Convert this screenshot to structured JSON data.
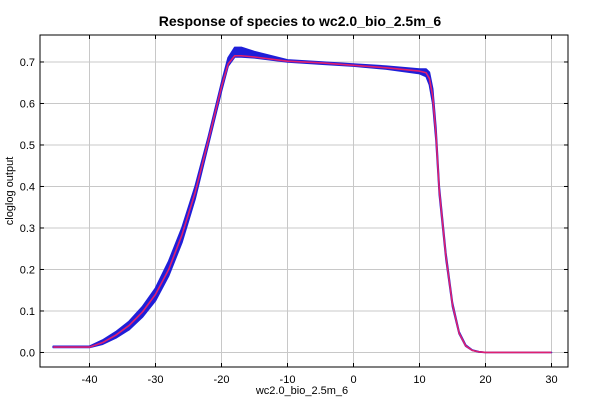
{
  "chart_data": {
    "type": "line",
    "title": "Response of species to wc2.0_bio_2.5m_6",
    "xlabel": "wc2.0_bio_2.5m_6",
    "ylabel": "cloglog output",
    "xlim": [
      -47.5,
      32.5
    ],
    "ylim": [
      -0.035,
      0.765
    ],
    "xticks": [
      -40,
      -30,
      -20,
      -10,
      0,
      10,
      20,
      30
    ],
    "yticks": [
      0.0,
      0.1,
      0.2,
      0.3,
      0.4,
      0.5,
      0.6,
      0.7
    ],
    "ytick_labels": [
      "0.0",
      "0.1",
      "0.2",
      "0.3",
      "0.4",
      "0.5",
      "0.6",
      "0.7"
    ],
    "grid": true,
    "colors": {
      "band": "#1f1fd9",
      "mean_line": "#e0206e"
    },
    "band": {
      "name": "",
      "x": [
        -45.5,
        -40,
        -38,
        -36,
        -34,
        -32,
        -30,
        -28,
        -26,
        -24,
        -22,
        -20,
        -19,
        -18,
        -17,
        -15,
        -10,
        -5,
        0,
        5,
        10,
        11,
        11.5,
        12,
        12.5,
        13,
        14,
        15,
        16,
        17,
        18,
        19,
        20,
        22,
        25,
        30
      ],
      "upper": [
        0.015,
        0.015,
        0.03,
        0.05,
        0.075,
        0.11,
        0.155,
        0.22,
        0.3,
        0.4,
        0.52,
        0.65,
        0.71,
        0.735,
        0.735,
        0.725,
        0.705,
        0.7,
        0.695,
        0.69,
        0.683,
        0.683,
        0.675,
        0.635,
        0.54,
        0.4,
        0.24,
        0.12,
        0.05,
        0.018,
        0.006,
        0.002,
        0.0,
        0.0,
        0.0,
        0.0
      ],
      "lower": [
        0.012,
        0.012,
        0.02,
        0.035,
        0.055,
        0.085,
        0.125,
        0.185,
        0.265,
        0.37,
        0.5,
        0.63,
        0.69,
        0.712,
        0.712,
        0.71,
        0.7,
        0.695,
        0.69,
        0.683,
        0.672,
        0.665,
        0.645,
        0.6,
        0.51,
        0.38,
        0.225,
        0.11,
        0.045,
        0.015,
        0.005,
        0.001,
        0.0,
        0.0,
        0.0,
        0.0
      ]
    },
    "mean_line": {
      "name": "",
      "x": [
        -45.5,
        -40,
        -38,
        -36,
        -34,
        -32,
        -30,
        -28,
        -26,
        -24,
        -22,
        -20,
        -19,
        -18,
        -17,
        -15,
        -10,
        -5,
        0,
        5,
        10,
        11,
        11.5,
        12,
        12.5,
        13,
        14,
        15,
        16,
        17,
        18,
        19,
        20,
        22,
        25,
        30
      ],
      "y": [
        0.013,
        0.013,
        0.024,
        0.042,
        0.065,
        0.097,
        0.14,
        0.2,
        0.283,
        0.385,
        0.51,
        0.64,
        0.695,
        0.715,
        0.715,
        0.712,
        0.702,
        0.698,
        0.692,
        0.686,
        0.678,
        0.674,
        0.66,
        0.618,
        0.525,
        0.39,
        0.232,
        0.115,
        0.047,
        0.016,
        0.005,
        0.0015,
        0.0,
        0.0,
        0.0,
        0.0
      ]
    }
  }
}
